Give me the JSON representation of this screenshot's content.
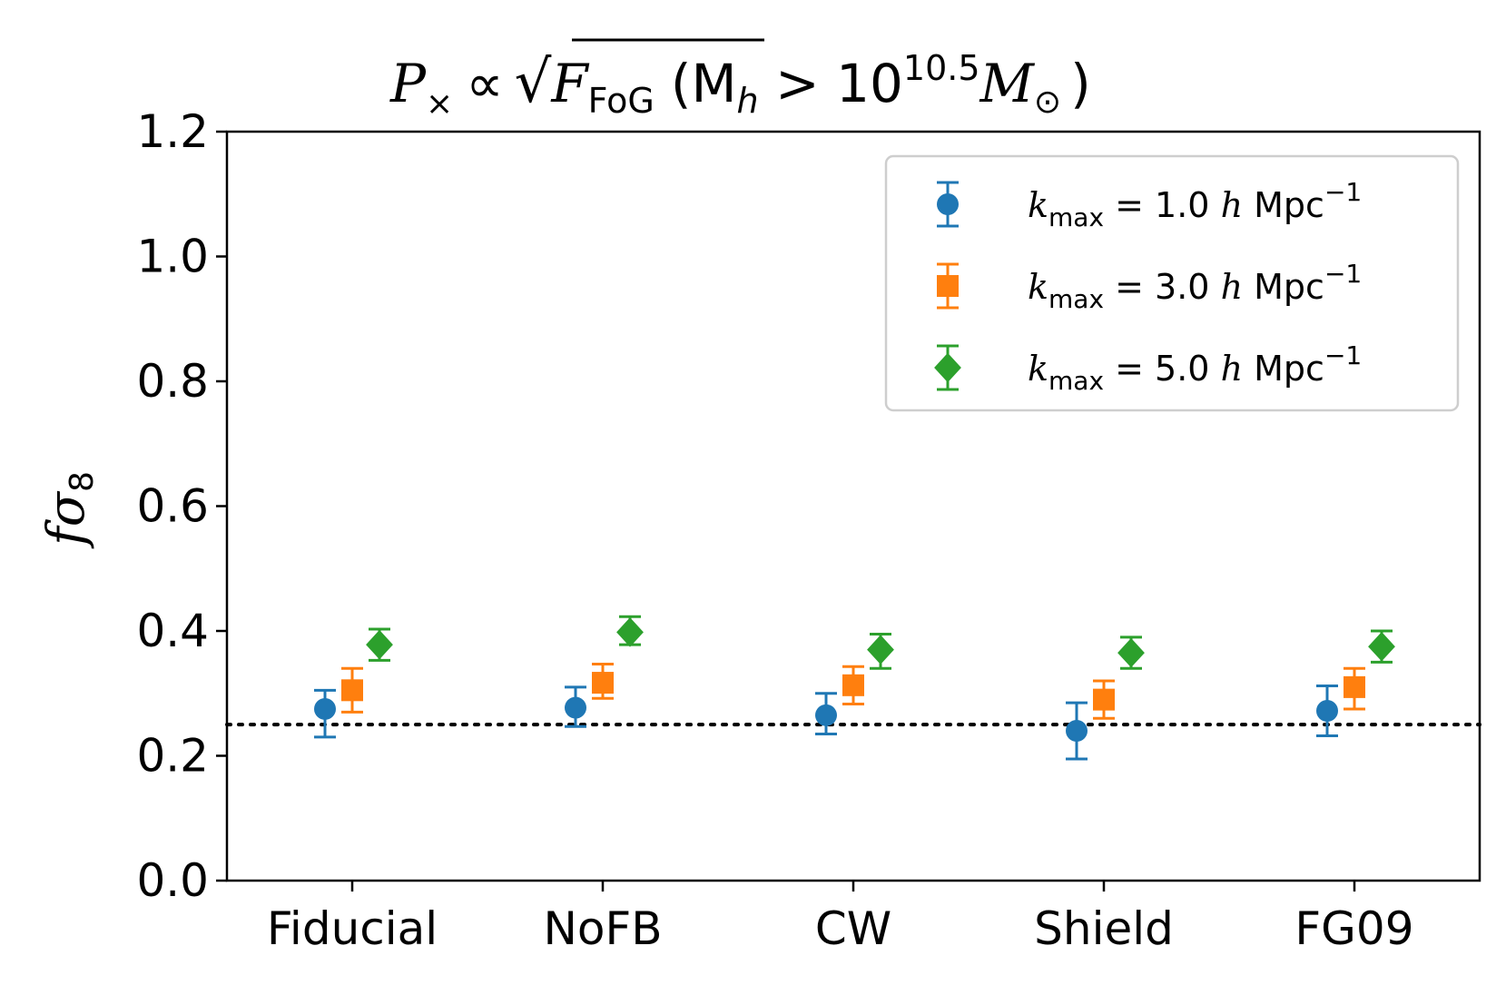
{
  "chart_data": {
    "type": "scatter",
    "title": "P_× ∝ √F_FoG (M_h > 10^10.5 M_⊙)",
    "title_parts": {
      "p": "P",
      "times": "×",
      "propto": "∝",
      "f": "F",
      "fog": "FoG",
      "open": "(M",
      "h": "h",
      "gt": " > 10",
      "exp": "10.5",
      "msun": "M",
      "sun": "⊙",
      "close": ")"
    },
    "xlabel": "",
    "ylabel": "fσ8",
    "ylabel_parts": {
      "f": "f",
      "sigma": "σ",
      "sub": "8"
    },
    "categories": [
      "Fiducial",
      "NoFB",
      "CW",
      "Shield",
      "FG09"
    ],
    "ylim": [
      0.0,
      1.2
    ],
    "yticks": [
      "0.0",
      "0.2",
      "0.4",
      "0.6",
      "0.8",
      "1.0",
      "1.2"
    ],
    "reference_line": {
      "y": 0.25,
      "style": "dotted",
      "color": "#000000"
    },
    "grid": false,
    "legend_position": "top-right",
    "series": [
      {
        "name": "k_max = 1.0 h Mpc^-1",
        "legend_value": "1.0",
        "marker": "circle",
        "color": "#1f77b4",
        "values": [
          0.275,
          0.277,
          0.265,
          0.24,
          0.272
        ],
        "err_low": [
          0.045,
          0.03,
          0.03,
          0.045,
          0.04
        ],
        "err_high": [
          0.03,
          0.033,
          0.035,
          0.045,
          0.04
        ]
      },
      {
        "name": "k_max = 3.0 h Mpc^-1",
        "legend_value": "3.0",
        "marker": "square",
        "color": "#ff7f0e",
        "values": [
          0.305,
          0.317,
          0.313,
          0.29,
          0.31
        ],
        "err_low": [
          0.035,
          0.025,
          0.03,
          0.03,
          0.035
        ],
        "err_high": [
          0.035,
          0.03,
          0.03,
          0.03,
          0.03
        ]
      },
      {
        "name": "k_max = 5.0 h Mpc^-1",
        "legend_value": "5.0",
        "marker": "diamond",
        "color": "#2ca02c",
        "values": [
          0.378,
          0.398,
          0.37,
          0.365,
          0.375
        ],
        "err_low": [
          0.025,
          0.02,
          0.03,
          0.025,
          0.025
        ],
        "err_high": [
          0.025,
          0.025,
          0.025,
          0.025,
          0.025
        ]
      }
    ],
    "legend_template": {
      "k": "k",
      "sub": "max",
      "eq": " = ",
      "h": "h",
      "mpc": " Mpc",
      "exp": "−1"
    }
  }
}
